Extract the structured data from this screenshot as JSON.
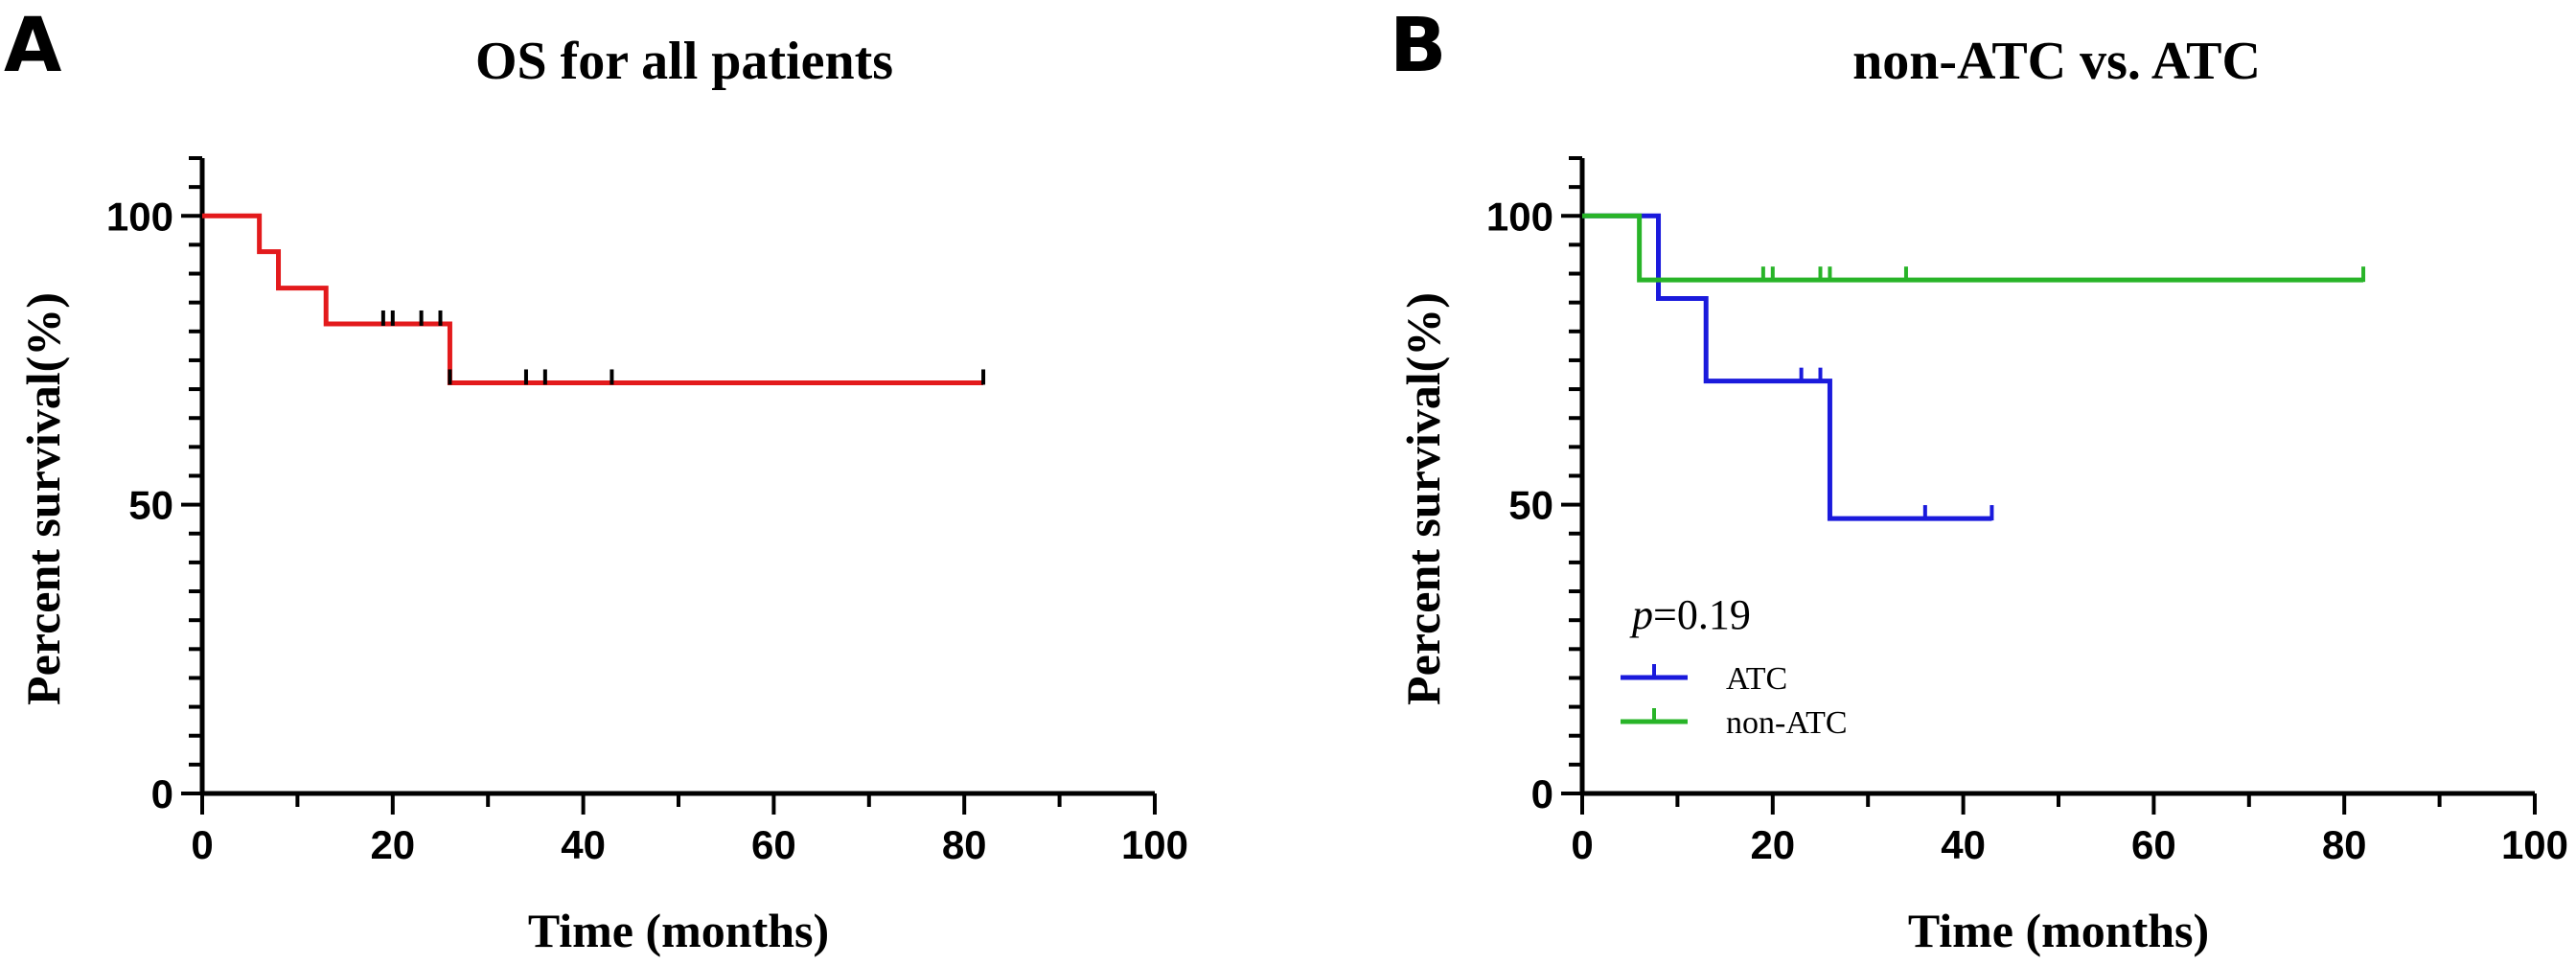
{
  "figure": {
    "panel_a_letter": "A",
    "panel_b_letter": "B"
  },
  "chart_data": [
    {
      "type": "line",
      "subtype": "kaplan-meier",
      "title": "OS for all patients",
      "xlabel": "Time (months)",
      "ylabel": "Percent survival(%)",
      "xlim": [
        0,
        100
      ],
      "ylim": [
        0,
        110
      ],
      "xticks": [
        0,
        20,
        40,
        60,
        80,
        100
      ],
      "xtick_labels": [
        "0",
        "20",
        "40",
        "60",
        "80",
        "100"
      ],
      "yticks": [
        0,
        50,
        100
      ],
      "ytick_labels": [
        "0",
        "50",
        "100"
      ],
      "series": [
        {
          "name": "All patients",
          "color": "#e31a1c",
          "steps": [
            [
              0,
              100
            ],
            [
              6,
              93.8
            ],
            [
              8,
              87.5
            ],
            [
              13,
              81.3
            ],
            [
              26,
              71.1
            ],
            [
              82,
              71.1
            ]
          ],
          "censored": [
            19,
            20,
            23,
            25,
            26,
            34,
            36,
            43,
            82
          ]
        }
      ]
    },
    {
      "type": "line",
      "subtype": "kaplan-meier",
      "title": "non-ATC vs. ATC",
      "xlabel": "Time (months)",
      "ylabel": "Percent survival(%)",
      "xlim": [
        0,
        100
      ],
      "ylim": [
        0,
        110
      ],
      "xticks": [
        0,
        20,
        40,
        60,
        80,
        100
      ],
      "xtick_labels": [
        "0",
        "20",
        "40",
        "60",
        "80",
        "100"
      ],
      "yticks": [
        0,
        50,
        100
      ],
      "ytick_labels": [
        "0",
        "50",
        "100"
      ],
      "annotation": {
        "p_symbol": "p",
        "p_text": "=0.19"
      },
      "legend_position": "bottom-left",
      "series": [
        {
          "name": "ATC",
          "color": "#1a1adc",
          "steps": [
            [
              0,
              100
            ],
            [
              8,
              85.7
            ],
            [
              13,
              71.4
            ],
            [
              26,
              47.6
            ],
            [
              43,
              47.6
            ]
          ],
          "censored": [
            23,
            25,
            36,
            43
          ]
        },
        {
          "name": "non-ATC",
          "color": "#28b428",
          "steps": [
            [
              0,
              100
            ],
            [
              6,
              88.9
            ],
            [
              82,
              88.9
            ]
          ],
          "censored": [
            19,
            20,
            25,
            26,
            34,
            82
          ]
        }
      ]
    }
  ]
}
